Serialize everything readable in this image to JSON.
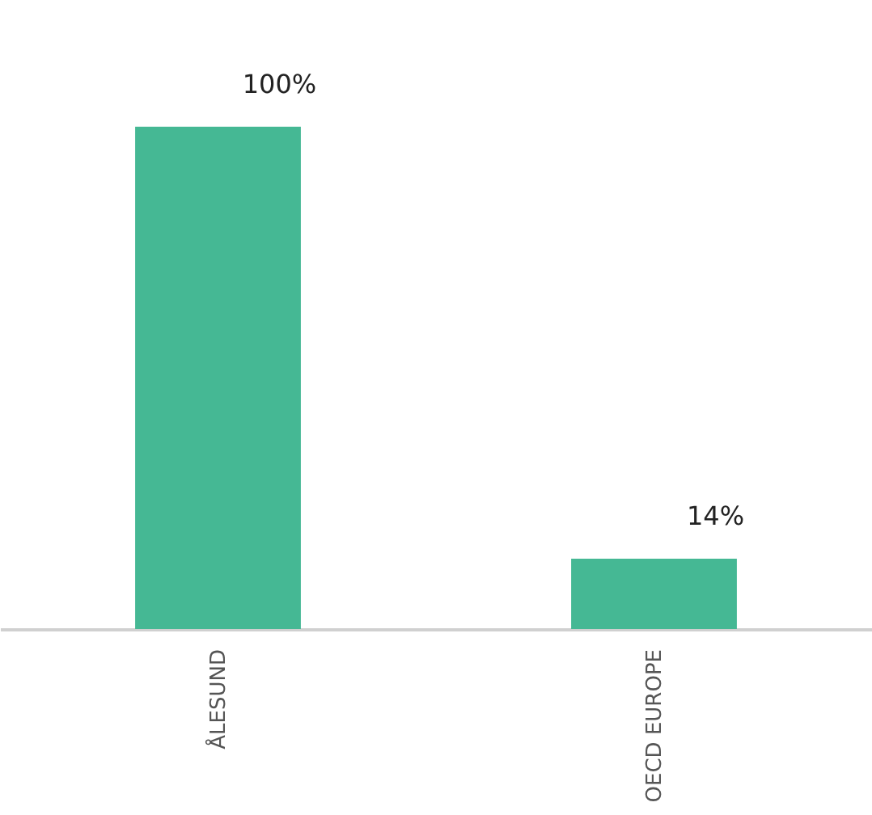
{
  "chart_data": {
    "type": "bar",
    "categories": [
      "ÅLESUND",
      "OECD EUROPE"
    ],
    "values": [
      100,
      14
    ],
    "value_labels": [
      "100%",
      "14%"
    ],
    "color": "#45b894"
  }
}
